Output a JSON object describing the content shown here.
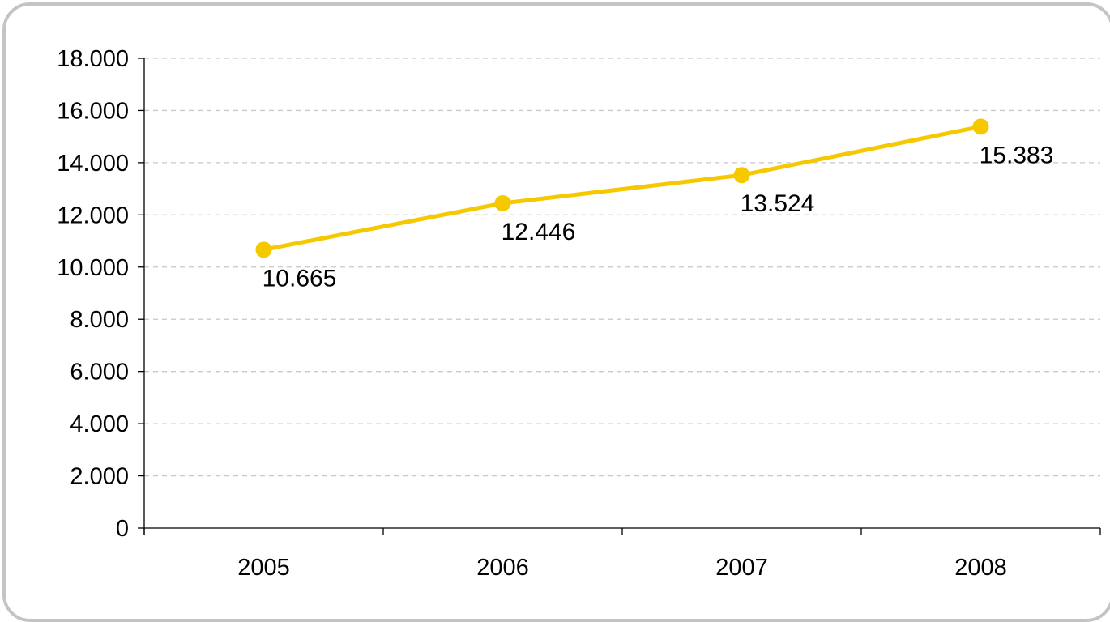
{
  "chart_data": {
    "type": "line",
    "title": "",
    "xlabel": "",
    "ylabel": "",
    "categories": [
      "2005",
      "2006",
      "2007",
      "2008"
    ],
    "series": [
      {
        "values": [
          10665,
          12446,
          13524,
          15383
        ],
        "labels": [
          "10.665",
          "12.446",
          "13.524",
          "15.383"
        ],
        "color": "#f5c800"
      }
    ],
    "ylim": [
      0,
      18000
    ],
    "yticks": [
      0,
      2000,
      4000,
      6000,
      8000,
      10000,
      12000,
      14000,
      16000,
      18000
    ],
    "ytick_labels": [
      "0",
      "2.000",
      "4.000",
      "6.000",
      "8.000",
      "10.000",
      "12.000",
      "14.000",
      "16.000",
      "18.000"
    ],
    "grid": "horizontal-dashed",
    "gridline_color": "#c8c8c8",
    "axis_color": "#000000",
    "legend": "none",
    "frame_border_color": "#c4c4c4"
  }
}
